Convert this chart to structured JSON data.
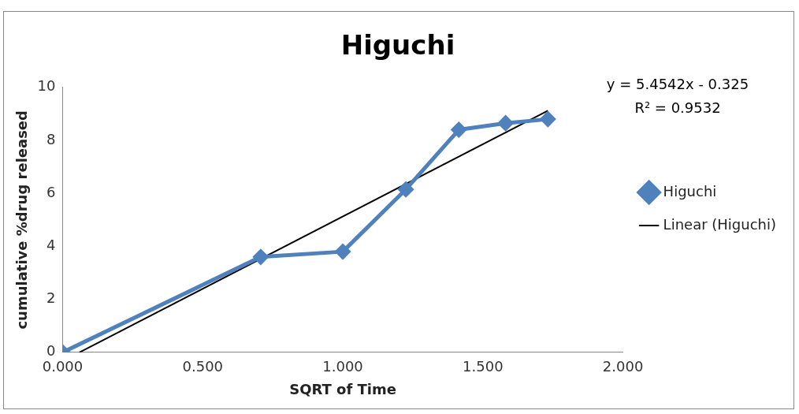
{
  "chart_data": {
    "type": "line",
    "title": "Higuchi",
    "xlabel": "SQRT of Time",
    "ylabel": "cumulative %drug released",
    "xlim": [
      0,
      2
    ],
    "xticks": [
      {
        "value": 0,
        "label": "0.000"
      },
      {
        "value": 0.5,
        "label": "0.500"
      },
      {
        "value": 1,
        "label": "1.000"
      },
      {
        "value": 1.5,
        "label": "1.500"
      },
      {
        "value": 2,
        "label": "2.000"
      }
    ],
    "ylim": [
      0,
      10
    ],
    "yticks": [
      0,
      2,
      4,
      6,
      8,
      10
    ],
    "grid": false,
    "legend": "right",
    "annotations": [
      "y = 5.4542x - 0.325",
      "R² = 0.9532"
    ],
    "series": [
      {
        "name": "Higuchi",
        "color": "#4f81bd",
        "x": [
          0,
          0.707,
          1.0,
          1.225,
          1.414,
          1.581,
          1.732
        ],
        "values": [
          0,
          3.6,
          3.8,
          6.15,
          8.4,
          8.65,
          8.8
        ],
        "marker": "diamond",
        "line_style": "solid"
      },
      {
        "name": "Linear (Higuchi)",
        "type": "line",
        "color": "#000000",
        "x": [
          0.06,
          1.732
        ],
        "values": [
          0,
          9.12
        ],
        "marker": "none",
        "line_style": "solid"
      }
    ]
  }
}
